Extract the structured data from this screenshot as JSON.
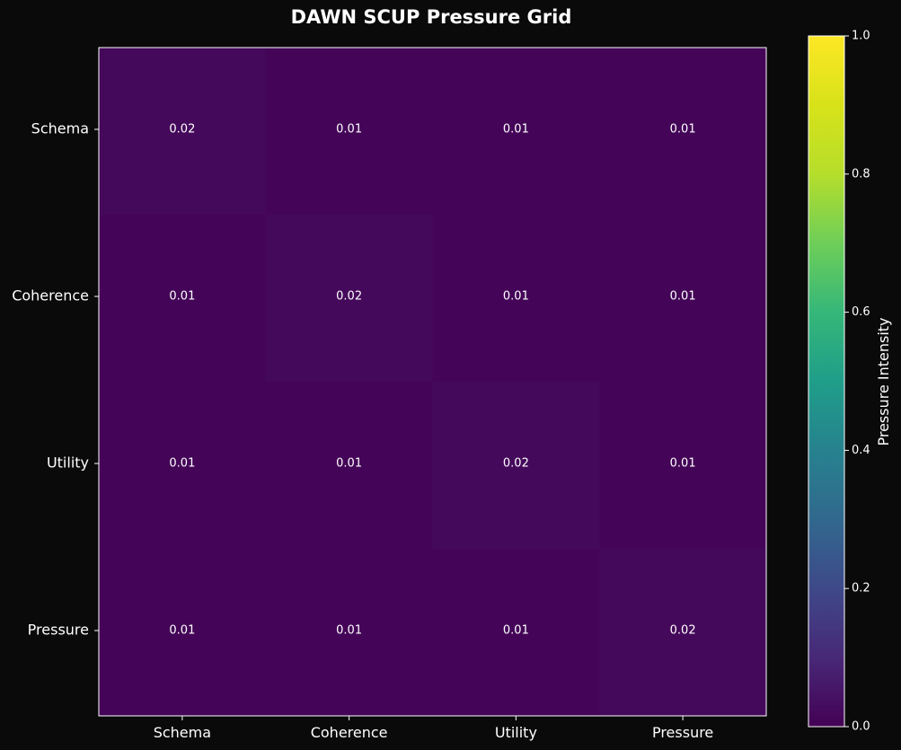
{
  "chart_data": {
    "type": "heatmap",
    "title": "DAWN SCUP Pressure Grid",
    "x_categories": [
      "Schema",
      "Coherence",
      "Utility",
      "Pressure"
    ],
    "y_categories": [
      "Schema",
      "Coherence",
      "Utility",
      "Pressure"
    ],
    "values": [
      [
        0.02,
        0.01,
        0.01,
        0.01
      ],
      [
        0.01,
        0.02,
        0.01,
        0.01
      ],
      [
        0.01,
        0.01,
        0.02,
        0.01
      ],
      [
        0.01,
        0.01,
        0.01,
        0.02
      ]
    ],
    "value_labels": [
      [
        "0.02",
        "0.01",
        "0.01",
        "0.01"
      ],
      [
        "0.01",
        "0.02",
        "0.01",
        "0.01"
      ],
      [
        "0.01",
        "0.01",
        "0.02",
        "0.01"
      ],
      [
        "0.01",
        "0.01",
        "0.01",
        "0.02"
      ]
    ],
    "colormap": "viridis",
    "vmin": 0,
    "vmax": 1,
    "colorbar": {
      "label": "Pressure Intensity",
      "ticks": [
        "0.0",
        "0.2",
        "0.4",
        "0.6",
        "0.8",
        "1.0"
      ],
      "tick_values": [
        0,
        0.2,
        0.4,
        0.6,
        0.8,
        1.0
      ]
    },
    "colors": {
      "background": "#0a0a0a",
      "text": "#ffffff",
      "frame": "#ffffff"
    }
  }
}
